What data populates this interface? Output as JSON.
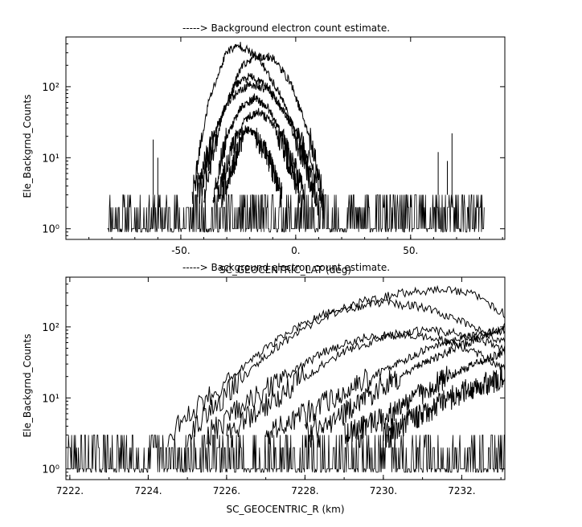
{
  "chart_data": [
    {
      "type": "line",
      "title": "-----> Background electron count estimate.",
      "xlabel": "SC_GEOCENTRIC_LAT (deg)",
      "ylabel": "Ele_Backgrnd_Counts",
      "xlim": [
        -100,
        91
      ],
      "ylim_log10": [
        -0.15,
        2.7
      ],
      "y_scale": "log",
      "x_ticks": [
        -50,
        0,
        50
      ],
      "x_tick_labels": [
        "-50.",
        "0.",
        "50."
      ],
      "y_ticks": [
        1,
        10,
        100
      ],
      "y_tick_labels": [
        "10⁰",
        "10¹",
        "10²"
      ],
      "grid": false,
      "series": [
        {
          "x": [
            -45,
            -38,
            -30,
            -24,
            -16,
            -6,
            4,
            10
          ],
          "y": [
            3,
            60,
            320,
            380,
            250,
            70,
            10,
            2
          ]
        },
        {
          "x": [
            -40,
            -32,
            -24,
            -18,
            -10,
            -2,
            6,
            12
          ],
          "y": [
            3,
            40,
            180,
            270,
            260,
            110,
            20,
            3
          ]
        },
        {
          "x": [
            -42,
            -34,
            -26,
            -20,
            -12,
            -4,
            4,
            10
          ],
          "y": [
            3,
            30,
            110,
            140,
            100,
            40,
            8,
            2
          ]
        },
        {
          "x": [
            -44,
            -36,
            -28,
            -20,
            -12,
            -4,
            6,
            12
          ],
          "y": [
            3,
            20,
            70,
            110,
            90,
            40,
            10,
            2
          ]
        },
        {
          "x": [
            -36,
            -30,
            -24,
            -18,
            -12,
            -4,
            4
          ],
          "y": [
            3,
            20,
            50,
            70,
            50,
            15,
            3
          ]
        },
        {
          "x": [
            -34,
            -28,
            -22,
            -16,
            -10,
            -4,
            2
          ],
          "y": [
            3,
            12,
            35,
            45,
            30,
            10,
            3
          ]
        },
        {
          "x": [
            -32,
            -26,
            -22,
            -18,
            -12,
            -6
          ],
          "y": [
            3,
            10,
            25,
            22,
            10,
            3
          ]
        }
      ]
    },
    {
      "type": "line",
      "title": "-----> Background electron count estimate.",
      "xlabel": "SC_GEOCENTRIC_R (km)",
      "ylabel": "Ele_Backgrnd_Counts",
      "xlim": [
        7221.9,
        7233.1
      ],
      "ylim_log10": [
        -0.15,
        2.7
      ],
      "y_scale": "log",
      "x_ticks": [
        7222,
        7224,
        7226,
        7228,
        7230,
        7232
      ],
      "x_tick_labels": [
        "7222.",
        "7224.",
        "7226.",
        "7228.",
        "7230.",
        "7232."
      ],
      "y_ticks": [
        1,
        10,
        100
      ],
      "y_tick_labels": [
        "10⁰",
        "10¹",
        "10²"
      ],
      "grid": false,
      "series": [
        {
          "x": [
            7224.5,
            7225.5,
            7226.5,
            7227.5,
            7228.5,
            7229.5,
            7230.5,
            7231.5,
            7232.3,
            7233.1
          ],
          "y": [
            3,
            10,
            30,
            80,
            150,
            230,
            300,
            340,
            290,
            150
          ]
        },
        {
          "x": [
            7225,
            7226,
            7227,
            7228,
            7229,
            7230,
            7231,
            7232,
            7233.1
          ],
          "y": [
            3,
            12,
            40,
            100,
            180,
            220,
            190,
            120,
            60
          ]
        },
        {
          "x": [
            7225.5,
            7226.5,
            7227.5,
            7228.5,
            7229.5,
            7230.5,
            7231.5,
            7232.5,
            7233.1
          ],
          "y": [
            3,
            8,
            20,
            45,
            70,
            80,
            65,
            40,
            25
          ]
        },
        {
          "x": [
            7226,
            7227,
            7228,
            7229,
            7230,
            7231,
            7232,
            7233.1
          ],
          "y": [
            3,
            8,
            20,
            45,
            70,
            90,
            80,
            50
          ]
        },
        {
          "x": [
            7227,
            7228,
            7229,
            7230,
            7231,
            7232,
            7233.1
          ],
          "y": [
            3,
            6,
            12,
            25,
            45,
            70,
            90
          ]
        },
        {
          "x": [
            7228,
            7229,
            7230,
            7231,
            7232,
            7233.1
          ],
          "y": [
            3,
            6,
            15,
            30,
            55,
            100
          ]
        },
        {
          "x": [
            7229,
            7230,
            7231,
            7232,
            7233.1
          ],
          "y": [
            3,
            5,
            12,
            25,
            45
          ]
        },
        {
          "x": [
            7230,
            7231,
            7232,
            7233.1
          ],
          "y": [
            3,
            6,
            12,
            20
          ]
        }
      ]
    }
  ]
}
